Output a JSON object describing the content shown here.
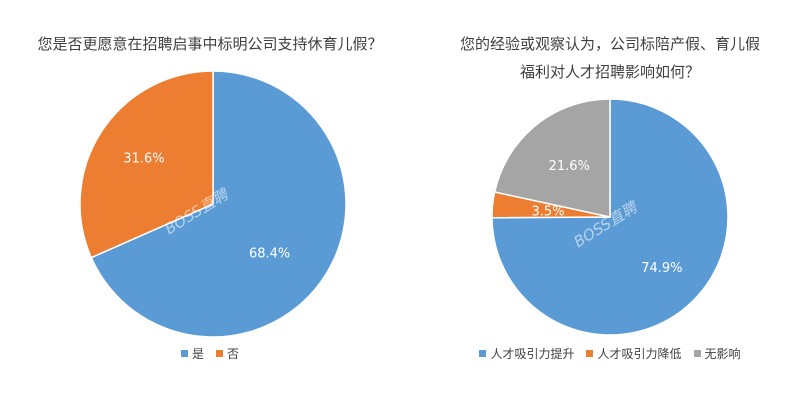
{
  "colors": {
    "blue": "#5b9bd5",
    "orange": "#ed7d31",
    "gray": "#a5a5a5"
  },
  "watermark": "BOSS直聘",
  "chart_data": [
    {
      "type": "pie",
      "title": "您是否更愿意在招聘启事中标明公司支持休育儿假？",
      "categories": [
        "是",
        "否"
      ],
      "values": [
        68.4,
        31.6
      ],
      "value_labels": [
        "68.4%",
        "31.6%"
      ],
      "colors": [
        "#5b9bd5",
        "#ed7d31"
      ],
      "start_angle": 0,
      "direction": "clockwise",
      "legend_position": "bottom"
    },
    {
      "type": "pie",
      "title": "您的经验或观察认为，公司标陪产假、育儿假福利对人才招聘影响如何？",
      "categories": [
        "人才吸引力提升",
        "人才吸引力降低",
        "无影响"
      ],
      "values": [
        74.9,
        3.5,
        21.6
      ],
      "value_labels": [
        "74.9%",
        "3.5%",
        "21.6%"
      ],
      "colors": [
        "#5b9bd5",
        "#ed7d31",
        "#a5a5a5"
      ],
      "start_angle": 0,
      "direction": "clockwise",
      "legend_position": "bottom"
    }
  ]
}
